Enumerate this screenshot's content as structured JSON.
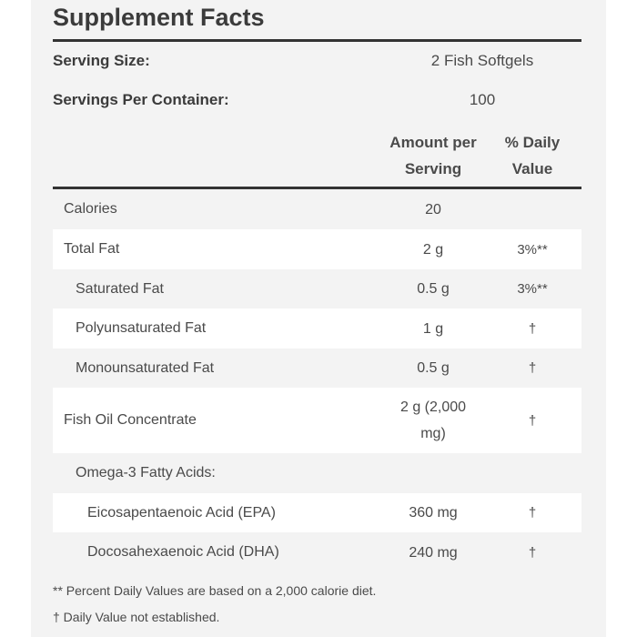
{
  "title": "Supplement Facts",
  "serving": {
    "size_label": "Serving Size:",
    "size_value": "2 Fish Softgels",
    "per_container_label": "Servings Per Container:",
    "per_container_value": "100"
  },
  "columns": {
    "amount_line1": "Amount per",
    "amount_line2": "Serving",
    "dv_line1": "% Daily",
    "dv_line2": "Value"
  },
  "rows": [
    {
      "name": "Calories",
      "amount": "20",
      "dv": ""
    },
    {
      "name": "Total Fat",
      "amount": "2 g",
      "dv": "3%**"
    },
    {
      "name": "Saturated Fat",
      "amount": "0.5 g",
      "dv": "3%**"
    },
    {
      "name": "Polyunsaturated Fat",
      "amount": "1 g",
      "dv": "†"
    },
    {
      "name": "Monounsaturated Fat",
      "amount": "0.5 g",
      "dv": "†"
    },
    {
      "name": "Fish Oil Concentrate",
      "amount_line1": "2 g (2,000",
      "amount_line2": "mg)",
      "dv": "†"
    },
    {
      "name": "Omega-3 Fatty Acids:",
      "amount": "",
      "dv": ""
    },
    {
      "name": "Eicosapentaenoic Acid (EPA)",
      "amount": "360 mg",
      "dv": "†"
    },
    {
      "name": "Docosahexaenoic Acid (DHA)",
      "amount": "240 mg",
      "dv": "†"
    }
  ],
  "footnotes": [
    "** Percent Daily Values are based on a 2,000 calorie diet.",
    "† Daily Value not established."
  ]
}
